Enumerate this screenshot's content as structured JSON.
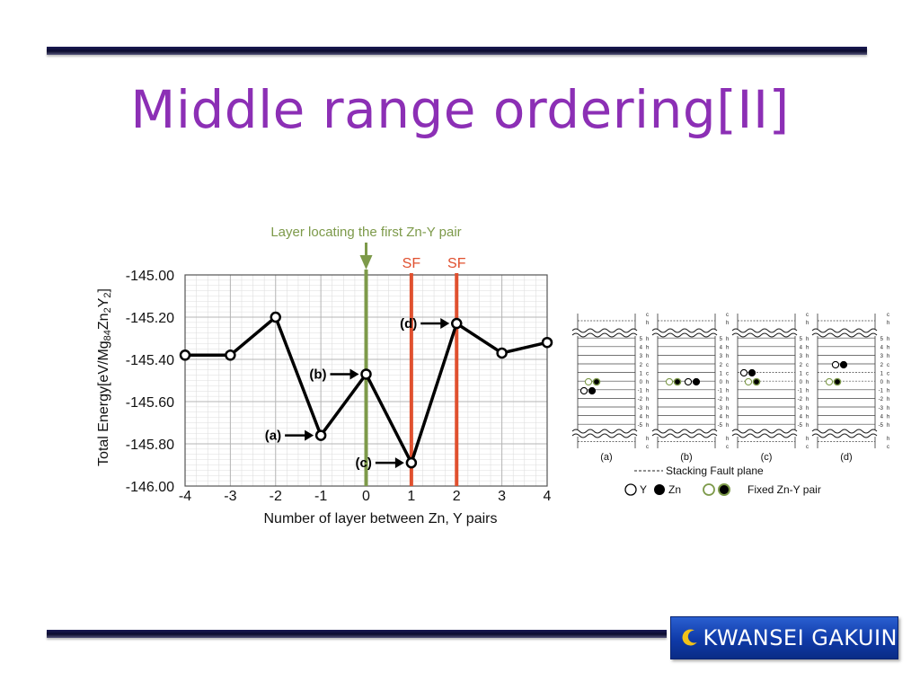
{
  "slide": {
    "title": "Middle range ordering[II]",
    "logo_text": "KWANSEI GAKUIN"
  },
  "chart_data": {
    "type": "line",
    "xlabel": "Number of layer between Zn, Y pairs",
    "ylabel": "Total Energy[eV/Mg84Zn2Y2]",
    "ylabel_parts": [
      {
        "t": "Total Energy[eV/Mg",
        "sub": false
      },
      {
        "t": "84",
        "sub": true
      },
      {
        "t": "Zn",
        "sub": false
      },
      {
        "t": "2",
        "sub": true
      },
      {
        "t": "Y",
        "sub": false
      },
      {
        "t": "2",
        "sub": true
      },
      {
        "t": "]",
        "sub": false
      }
    ],
    "x": [
      -4,
      -3,
      -2,
      -1,
      0,
      1,
      2,
      3,
      4
    ],
    "y": [
      -145.38,
      -145.38,
      -145.2,
      -145.76,
      -145.47,
      -145.89,
      -145.23,
      -145.37,
      -145.32
    ],
    "xlim": [
      -4,
      4
    ],
    "ylim": [
      -146.0,
      -145.0
    ],
    "x_ticks": [
      "-4",
      "-3",
      "-2",
      "-1",
      "0",
      "1",
      "2",
      "3",
      "4"
    ],
    "y_ticks": [
      {
        "v": -145.0,
        "label": "-145.00"
      },
      {
        "v": -145.2,
        "label": "-145.20"
      },
      {
        "v": -145.4,
        "label": "-145.40"
      },
      {
        "v": -145.6,
        "label": "-145.60"
      },
      {
        "v": -145.8,
        "label": "-145.80"
      },
      {
        "v": -146.0,
        "label": "-146.00"
      }
    ],
    "grid": true,
    "reference_lines": [
      {
        "x": 0,
        "label": "Layer locating the first Zn-Y pair",
        "color": "#7d9a4a"
      },
      {
        "x": 1,
        "label": "SF",
        "color": "#e0502f"
      },
      {
        "x": 2,
        "label": "SF",
        "color": "#e0502f"
      }
    ],
    "annotations": [
      {
        "label": "(a)",
        "x": -1,
        "y": -145.76
      },
      {
        "label": "(b)",
        "x": 0,
        "y": -145.47
      },
      {
        "label": "(c)",
        "x": 1,
        "y": -145.89
      },
      {
        "label": "(d)",
        "x": 2,
        "y": -145.23
      }
    ]
  },
  "diagram": {
    "panels": [
      {
        "label": "(a)",
        "zn_y": [
          [
            0,
            "fixed"
          ],
          [
            -1,
            "free"
          ]
        ]
      },
      {
        "label": "(b)",
        "zn_y": [
          [
            0,
            "fixed"
          ],
          [
            0,
            "free"
          ]
        ]
      },
      {
        "label": "(c)",
        "zn_y": [
          [
            0,
            "fixed"
          ],
          [
            1,
            "free"
          ]
        ]
      },
      {
        "label": "(d)",
        "zn_y": [
          [
            0,
            "fixed"
          ],
          [
            2,
            "free"
          ]
        ]
      }
    ],
    "layers": [
      {
        "n": "5",
        "t": "h"
      },
      {
        "n": "4",
        "t": "h"
      },
      {
        "n": "3",
        "t": "h"
      },
      {
        "n": "2",
        "t": "c"
      },
      {
        "n": "1",
        "t": "c"
      },
      {
        "n": "0",
        "t": "h"
      },
      {
        "n": "-1",
        "t": "h"
      },
      {
        "n": "-2",
        "t": "h"
      },
      {
        "n": "-3",
        "t": "h"
      },
      {
        "n": "4",
        "t": "h"
      },
      {
        "n": "-5",
        "t": "h"
      }
    ],
    "top_labels": [
      {
        "n": "",
        "t": "c"
      },
      {
        "n": "",
        "t": "h"
      }
    ],
    "bottom_labels": [
      {
        "n": "",
        "t": "h"
      },
      {
        "n": "",
        "t": "c"
      }
    ],
    "legend": {
      "stacking_fault": "Stacking Fault plane",
      "y_label": "Y",
      "zn_label": "Zn",
      "fixed_label": "Fixed Zn-Y pair"
    }
  }
}
